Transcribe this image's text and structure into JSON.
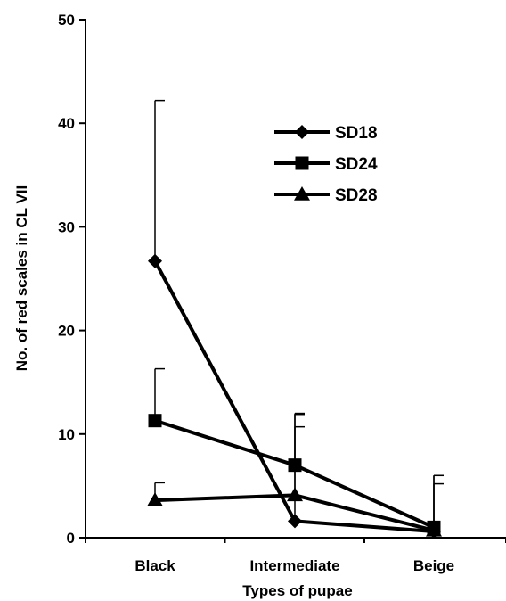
{
  "chart_data": {
    "type": "line",
    "xlabel": "Types of pupae",
    "ylabel": "No. of red scales in CL VII",
    "categories": [
      "Black",
      "Intermediate",
      "Beige"
    ],
    "ylim": [
      0,
      50
    ],
    "yticks": [
      0,
      10,
      20,
      30,
      40,
      50
    ],
    "grid": false,
    "legend_position": "top-right",
    "series": [
      {
        "name": "SD18",
        "marker": "diamond",
        "values": [
          26.7,
          1.6,
          0.6
        ],
        "errors": [
          15.5,
          10.3,
          5.4
        ]
      },
      {
        "name": "SD24",
        "marker": "square",
        "values": [
          11.3,
          7.0,
          1.0
        ],
        "errors": [
          5.0,
          5.0,
          5.0
        ]
      },
      {
        "name": "SD28",
        "marker": "triangle",
        "values": [
          3.6,
          4.1,
          0.7
        ],
        "errors": [
          1.7,
          6.6,
          4.5
        ]
      }
    ],
    "colors": {
      "line": "#000000",
      "background": "#ffffff"
    }
  }
}
